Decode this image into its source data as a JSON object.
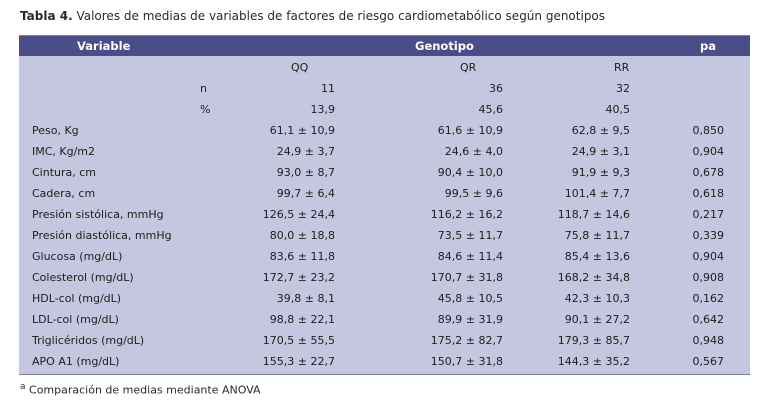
{
  "caption": {
    "label": "Tabla 4.",
    "text": "Valores de medias de variables de factores de riesgo cardiometabólico según genotipos"
  },
  "header": {
    "variable": "Variable",
    "genotipo": "Genotipo",
    "pa": "pa"
  },
  "subheader": {
    "qq": "QQ",
    "qr": "QR",
    "rr": "RR"
  },
  "n_row": {
    "label": "n",
    "qq": "11",
    "qr": "36",
    "rr": "32"
  },
  "pct_row": {
    "label": "%",
    "qq": "13,9",
    "qr": "45,6",
    "rr": "40,5"
  },
  "rows": [
    {
      "label": "Peso, Kg",
      "qq": "61,1 ± 10,9",
      "qr": "61,6 ± 10,9",
      "rr": "62,8 ± 9,5",
      "p": "0,850"
    },
    {
      "label": "IMC, Kg/m2",
      "qq": "24,9 ± 3,7",
      "qr": "24,6 ± 4,0",
      "rr": "24,9 ± 3,1",
      "p": "0,904"
    },
    {
      "label": "Cintura, cm",
      "qq": "93,0 ± 8,7",
      "qr": "90,4 ± 10,0",
      "rr": "91,9 ± 9,3",
      "p": "0,678"
    },
    {
      "label": "Cadera, cm",
      "qq": "99,7 ± 6,4",
      "qr": "99,5 ± 9,6",
      "rr": "101,4 ± 7,7",
      "p": "0,618"
    },
    {
      "label": "Presión sistólica, mmHg",
      "qq": "126,5 ± 24,4",
      "qr": "116,2 ± 16,2",
      "rr": "118,7 ± 14,6",
      "p": "0,217"
    },
    {
      "label": "Presión diastólica, mmHg",
      "qq": "80,0 ± 18,8",
      "qr": "73,5 ± 11,7",
      "rr": "75,8 ± 11,7",
      "p": "0,339"
    },
    {
      "label": "Glucosa (mg/dL)",
      "qq": "83,6 ± 11,8",
      "qr": "84,6 ± 11,4",
      "rr": "85,4 ± 13,6",
      "p": "0,904"
    },
    {
      "label": "Colesterol (mg/dL)",
      "qq": "172,7 ± 23,2",
      "qr": "170,7 ± 31,8",
      "rr": "168,2 ± 34,8",
      "p": "0,908"
    },
    {
      "label": "HDL-col (mg/dL)",
      "qq": "39,8 ± 8,1",
      "qr": "45,8 ± 10,5",
      "rr": "42,3 ± 10,3",
      "p": "0,162"
    },
    {
      "label": "LDL-col (mg/dL)",
      "qq": "98,8 ± 22,1",
      "qr": "89,9 ± 31,9",
      "rr": "90,1 ± 27,2",
      "p": "0,642"
    },
    {
      "label": "Triglicéridos (mg/dL)",
      "qq": "170,5 ± 55,5",
      "qr": "175,2 ± 82,7",
      "rr": "179,3 ± 85,7",
      "p": "0,948"
    },
    {
      "label": "APO A1 (mg/dL)",
      "qq": "155,3 ± 22,7",
      "qr": "150,7 ± 31,8",
      "rr": "144,3 ± 35,2",
      "p": "0,567"
    }
  ],
  "footnote": {
    "marker": "a",
    "text": "Comparación de medias mediante ANOVA"
  },
  "colors": {
    "header_bg": "#4a4d87",
    "table_bg": "#c5c6df",
    "header_text": "#ffffff"
  }
}
